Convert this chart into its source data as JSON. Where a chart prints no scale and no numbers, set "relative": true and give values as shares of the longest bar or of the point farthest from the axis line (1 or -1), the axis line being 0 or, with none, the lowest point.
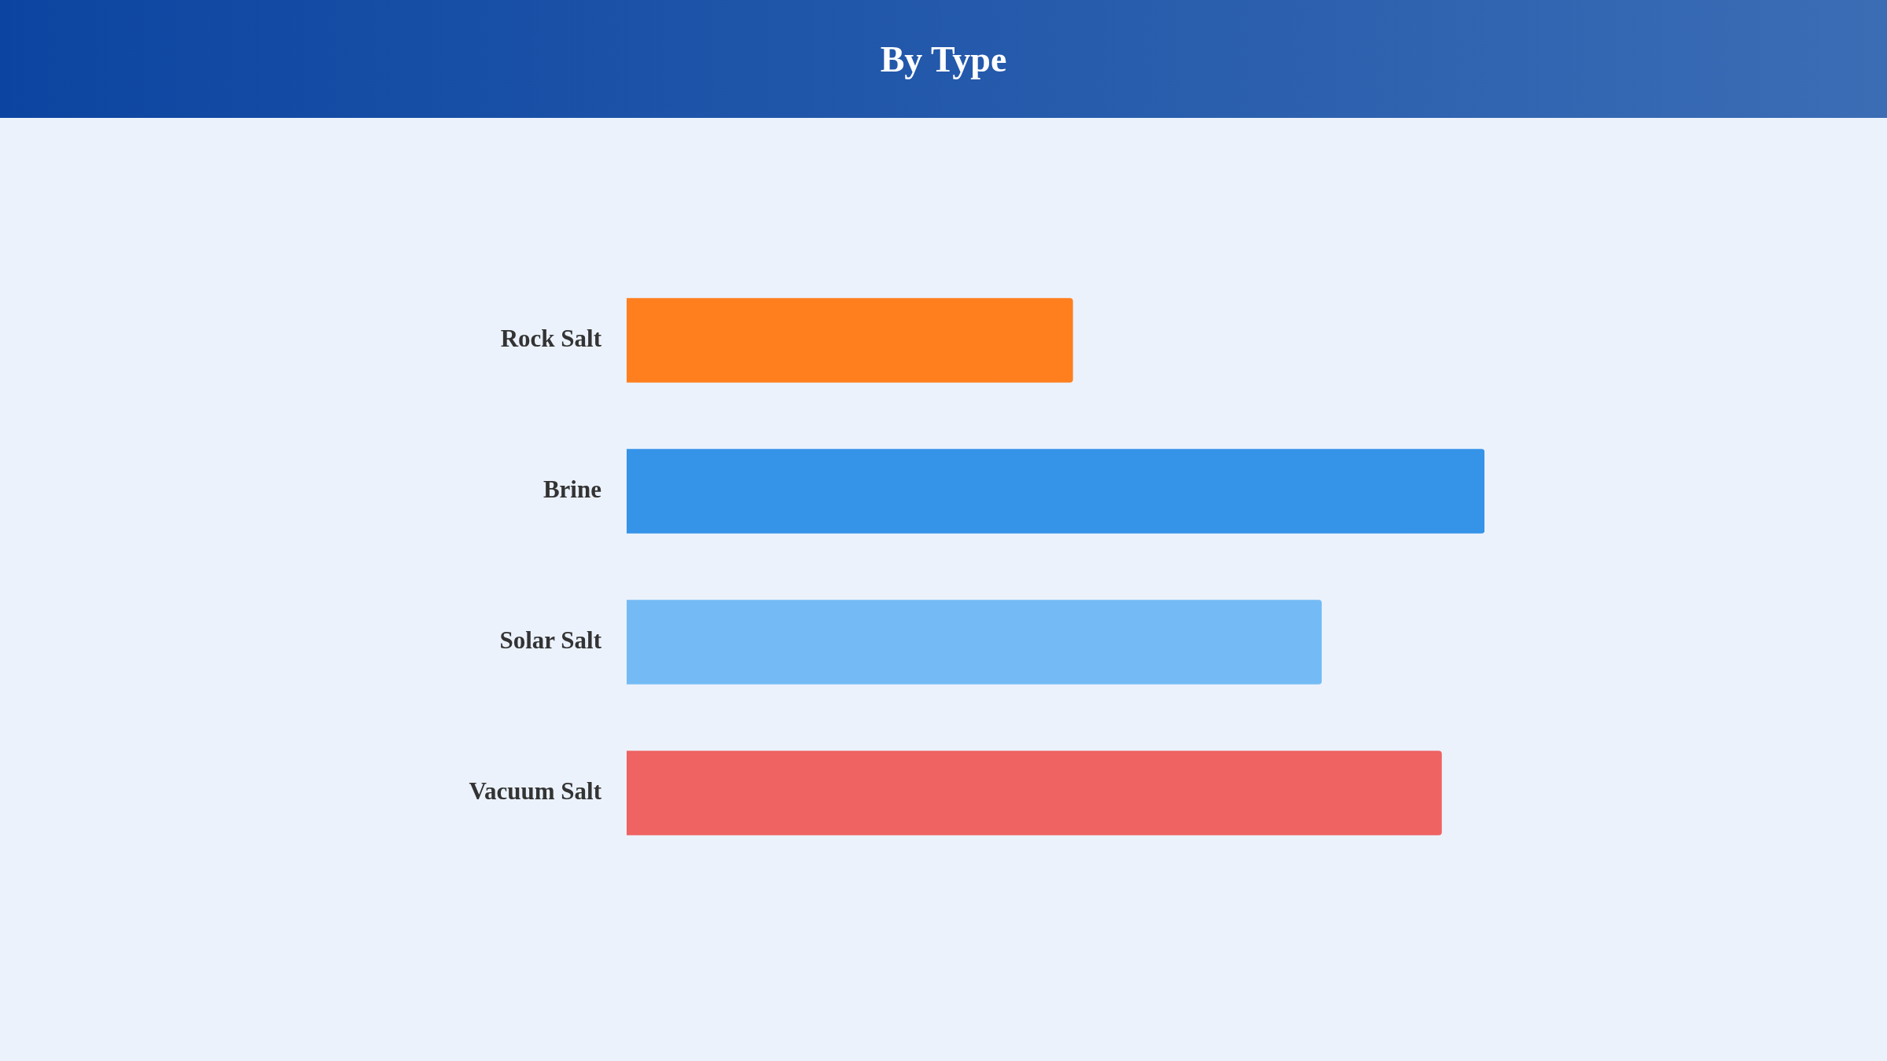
{
  "chart_data": {
    "type": "bar",
    "orientation": "horizontal",
    "relative": true,
    "title": "By Type",
    "categories": [
      "Rock Salt",
      "Brine",
      "Solar Salt",
      "Vacuum Salt"
    ],
    "values": [
      0.52,
      1,
      0.81,
      0.95
    ],
    "colors": [
      "#ff7f1e",
      "#3593e8",
      "#74bbf5",
      "#ef6363"
    ],
    "legend": false
  }
}
